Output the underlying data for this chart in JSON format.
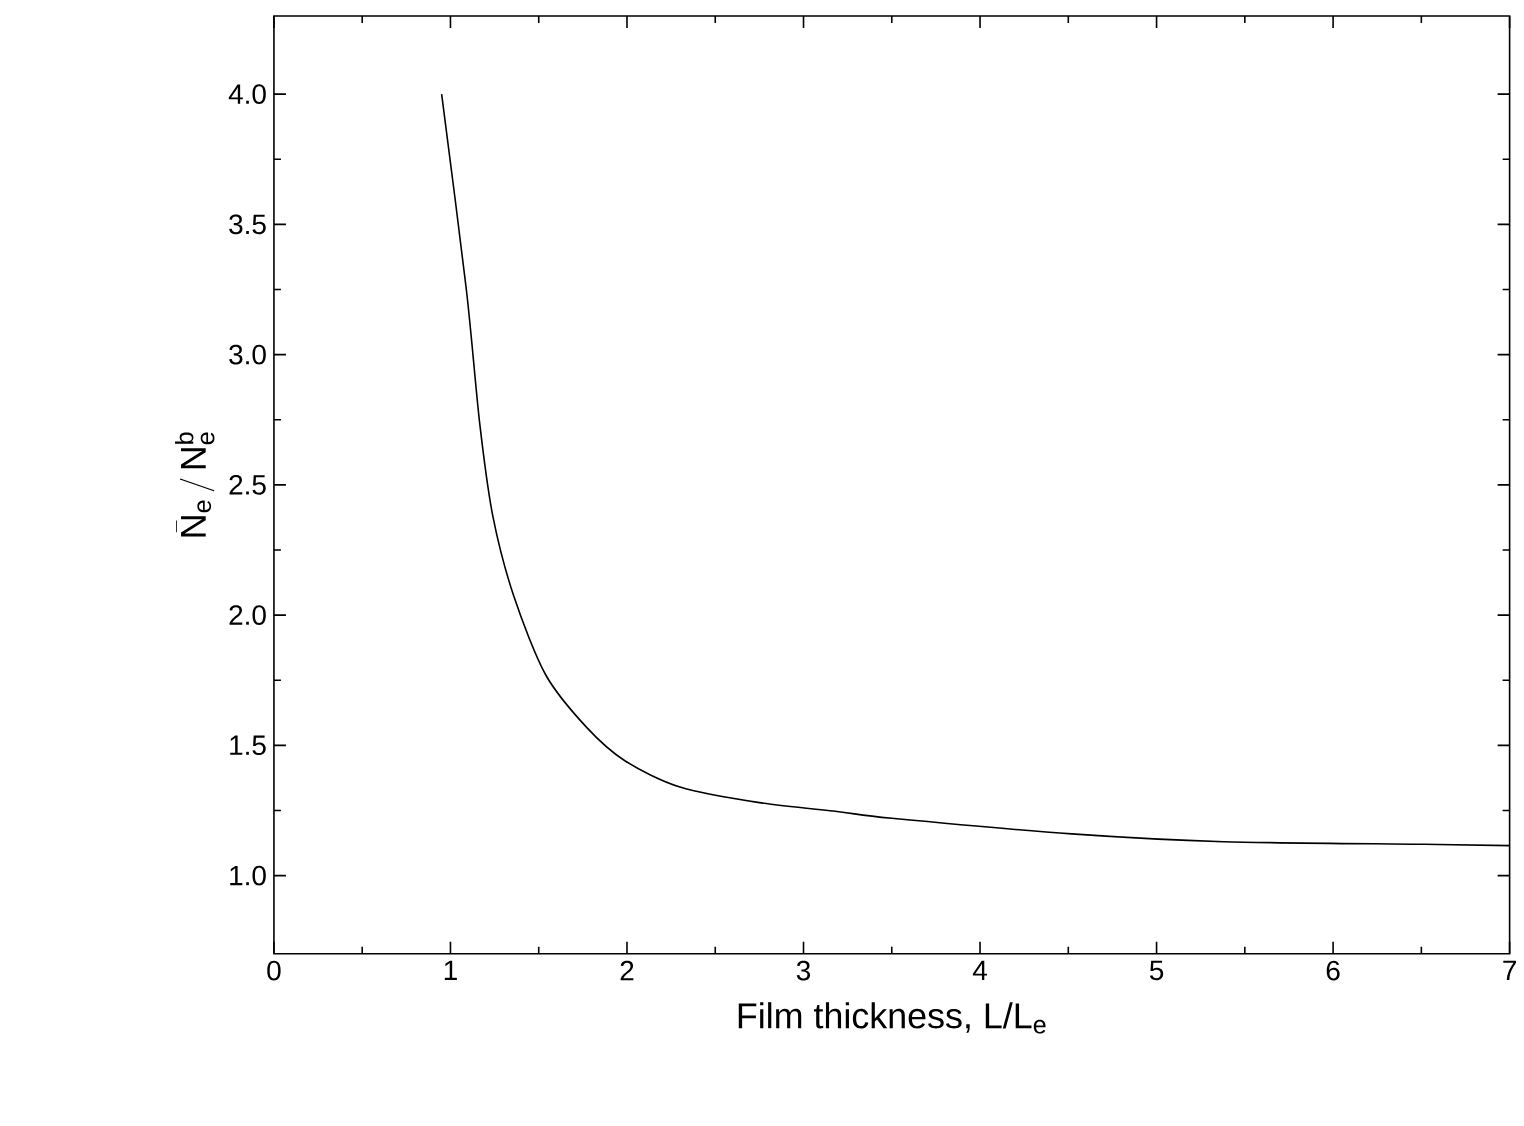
{
  "chart_data": {
    "type": "line",
    "xlabel": "Film thickness, L/L$_{e}$",
    "ylabel": "\\bar{\\mathsf{N}}_{\\mathsf{e}}\\,/\\,\\mathsf{N}_{\\mathsf{e}}^{\\mathsf{b}}",
    "xlim": [
      0,
      7
    ],
    "ylim": [
      0.7,
      4.3
    ],
    "xticks": [
      0,
      1,
      2,
      3,
      4,
      5,
      6,
      7
    ],
    "yticks": [
      {
        "value": 1,
        "label": "1.0"
      },
      {
        "value": 1.5,
        "label": "1.5"
      },
      {
        "value": 2,
        "label": "2.0"
      },
      {
        "value": 2.5,
        "label": "2.5"
      },
      {
        "value": 3,
        "label": "3.0"
      },
      {
        "value": 3.5,
        "label": "3.5"
      },
      {
        "value": 4,
        "label": "4.0"
      }
    ],
    "grid": false,
    "marker": "none",
    "line_style": "solid",
    "series": [
      {
        "color": "#000000",
        "x": [
          0.95,
          1.09,
          1.165,
          1.24,
          1.36,
          1.54,
          1.77,
          1.99,
          2.3,
          2.75,
          3.2,
          3.5,
          4.52,
          5.38,
          6.52,
          7.0
        ],
        "values": [
          4.0,
          3.25,
          2.74,
          2.38,
          2.07,
          1.77,
          1.57,
          1.44,
          1.34,
          1.28,
          1.245,
          1.22,
          1.16,
          1.13,
          1.12,
          1.115
        ]
      }
    ]
  }
}
